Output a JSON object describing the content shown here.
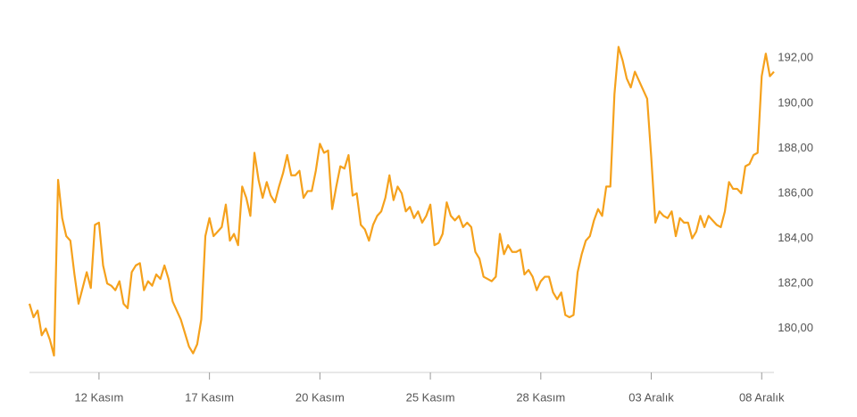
{
  "chart_data": {
    "type": "line",
    "series": [
      {
        "color": "#f5a11c",
        "values": [
          181.1,
          180.5,
          180.8,
          179.7,
          180.0,
          179.5,
          178.8,
          186.6,
          184.9,
          184.1,
          183.9,
          182.4,
          181.1,
          181.8,
          182.5,
          181.8,
          184.6,
          184.7,
          182.8,
          182.0,
          181.9,
          181.7,
          182.1,
          181.1,
          180.9,
          182.5,
          182.8,
          182.9,
          181.7,
          182.1,
          181.9,
          182.4,
          182.2,
          182.8,
          182.2,
          181.2,
          180.8,
          180.4,
          179.8,
          179.2,
          178.9,
          179.3,
          180.4,
          184.1,
          184.9,
          184.1,
          184.3,
          184.5,
          185.5,
          183.9,
          184.2,
          183.7,
          186.3,
          185.8,
          185.0,
          187.8,
          186.6,
          185.8,
          186.5,
          185.9,
          185.6,
          186.3,
          186.9,
          187.7,
          186.8,
          186.8,
          187.0,
          185.8,
          186.1,
          186.1,
          187.0,
          188.2,
          187.8,
          187.9,
          185.3,
          186.3,
          187.2,
          187.1,
          187.7,
          185.9,
          186.0,
          184.6,
          184.4,
          183.9,
          184.6,
          185.0,
          185.2,
          185.8,
          186.8,
          185.7,
          186.3,
          186.0,
          185.2,
          185.4,
          184.9,
          185.2,
          184.7,
          185.0,
          185.5,
          183.7,
          183.8,
          184.2,
          185.6,
          185.0,
          184.8,
          185.0,
          184.5,
          184.7,
          184.5,
          183.4,
          183.1,
          182.3,
          182.2,
          182.1,
          182.3,
          184.2,
          183.3,
          183.7,
          183.4,
          183.4,
          183.5,
          182.4,
          182.6,
          182.3,
          181.7,
          182.1,
          182.3,
          182.3,
          181.6,
          181.3,
          181.6,
          180.6,
          180.5,
          180.6,
          182.5,
          183.3,
          183.9,
          184.1,
          184.8,
          185.3,
          185.0,
          186.3,
          186.3,
          190.4,
          192.5,
          191.9,
          191.1,
          190.7,
          191.4,
          191.0,
          190.6,
          190.2,
          187.6,
          184.7,
          185.2,
          185.0,
          184.9,
          185.2,
          184.1,
          184.9,
          184.7,
          184.7,
          184.0,
          184.3,
          185.0,
          184.5,
          185.0,
          184.8,
          184.6,
          184.5,
          185.2,
          186.5,
          186.2,
          186.2,
          186.0,
          187.2,
          187.3,
          187.7,
          187.8,
          191.2,
          192.2,
          191.2,
          191.4
        ]
      }
    ],
    "xlim": [
      0,
      182
    ],
    "xticks": [
      {
        "value": 17,
        "label": "12 Kasım"
      },
      {
        "value": 44,
        "label": "17 Kasım"
      },
      {
        "value": 71,
        "label": "20 Kasım"
      },
      {
        "value": 98,
        "label": "25 Kasım"
      },
      {
        "value": 125,
        "label": "28 Kasım"
      },
      {
        "value": 152,
        "label": "03 Aralık"
      },
      {
        "value": 179,
        "label": "08 Aralık"
      }
    ],
    "ylim": [
      178.05,
      193.0
    ],
    "yticks": [
      {
        "value": 180,
        "label": "180,00"
      },
      {
        "value": 182,
        "label": "182,00"
      },
      {
        "value": 184,
        "label": "184,00"
      },
      {
        "value": 186,
        "label": "186,00"
      },
      {
        "value": 188,
        "label": "188,00"
      },
      {
        "value": 190,
        "label": "190,00"
      },
      {
        "value": 192,
        "label": "192,00"
      }
    ],
    "grid": false
  }
}
